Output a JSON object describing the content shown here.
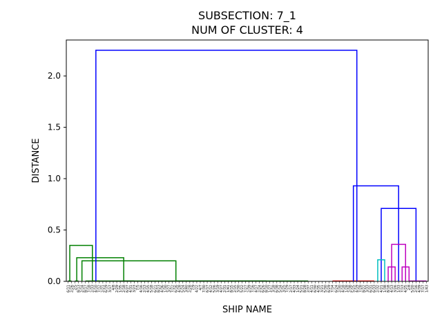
{
  "chart_data": {
    "type": "dendrogram",
    "title": "SUBSECTION: 7_1",
    "subtitle": "NUM OF CLUSTER: 4",
    "xlabel": "SHIP NAME",
    "ylabel": "DISTANCE",
    "ylim": [
      0,
      2.35
    ],
    "yticks": [
      0.0,
      0.5,
      1.0,
      1.5,
      2.0
    ],
    "ytick_labels": [
      "0.0",
      "0.5",
      "1.0",
      "1.5",
      "2.0"
    ],
    "leaf_count": 104,
    "leaf_labels": [
      "6/11",
      "2/26",
      "2/5",
      "8/13",
      "2/14",
      "8/17",
      "7/18",
      "2/33",
      "4/10",
      "7/12",
      "2/21",
      "6/19",
      "3/17",
      "4/8",
      "2/29",
      "1/35",
      "2/18",
      "6/27",
      "4/31",
      "3/23",
      "7/5",
      "4/16",
      "2/13",
      "4/15",
      "5/18",
      "6/21",
      "8/23",
      "4/36",
      "1/30",
      "3/27",
      "7/22",
      "6/16",
      "4/28",
      "5/24",
      "3/40",
      "2/28",
      "7/9",
      "4/22",
      "4/7",
      "7/30",
      "6/17",
      "4/12",
      "5/26",
      "3/19",
      "4/27",
      "2/31",
      "1/41",
      "8/15",
      "2/15",
      "3/30",
      "5/22",
      "7/27",
      "2/39",
      "7/16",
      "4/17",
      "2/24",
      "6/26",
      "8/10",
      "1/27",
      "3/18",
      "6/38",
      "5/14",
      "3/25",
      "7/29",
      "2/17",
      "4/33",
      "1/24",
      "5/21",
      "8/28",
      "2/37",
      "4/11",
      "6/30",
      "4/35",
      "3/21",
      "5/30",
      "6/29",
      "7/14",
      "6/24",
      "2/30",
      "4/18",
      "1/28",
      "2/38",
      "5/25",
      "4/19",
      "7/28",
      "8/22",
      "3/33",
      "6/31",
      "6/33",
      "2/32",
      "4/21",
      "1/38",
      "8/18",
      "4/13",
      "3/26",
      "1/33",
      "7/13",
      "4/25",
      "2/8",
      "5/20",
      "2/16",
      "4/39",
      "7/17",
      "1/43"
    ],
    "colors": {
      "above_threshold": "#0000ff",
      "cluster_1": "#008000",
      "cluster_2": "#ff0000",
      "cluster_3": "#00bfbf",
      "cluster_4": "#bf00bf"
    },
    "links": [
      {
        "x1": 1,
        "x2": 2,
        "height": 0.0,
        "color": "cluster_1"
      },
      {
        "x1": 1.5,
        "x2": 8,
        "height": 0.35,
        "color": "cluster_1"
      },
      {
        "x1": 3,
        "x2": 4,
        "height": 0.0,
        "color": "cluster_1"
      },
      {
        "x1": 3.5,
        "x2": 17,
        "height": 0.23,
        "color": "cluster_1"
      },
      {
        "x1": 5,
        "x2": 32,
        "height": 0.2,
        "color": "cluster_1"
      },
      {
        "x1": 6,
        "x2": 58,
        "height": 0.0,
        "color": "cluster_1"
      },
      {
        "x1": 32,
        "x2": 70,
        "height": 0.0,
        "color": "cluster_1"
      },
      {
        "x1": 8,
        "x2": 10,
        "height": 0.0,
        "color": "cluster_1"
      },
      {
        "x1": 17,
        "x2": 20,
        "height": 0.0,
        "color": "cluster_1"
      },
      {
        "x1": 77,
        "x2": 89,
        "height": 0.0,
        "color": "cluster_2"
      },
      {
        "x1": 83,
        "x2": 96,
        "height": 0.93,
        "color": "above_threshold"
      },
      {
        "x1": 91,
        "x2": 101,
        "height": 0.71,
        "color": "above_threshold"
      },
      {
        "x1": 90,
        "x2": 92,
        "height": 0.21,
        "color": "cluster_3"
      },
      {
        "x1": 94,
        "x2": 98,
        "height": 0.36,
        "color": "cluster_4"
      },
      {
        "x1": 93,
        "x2": 95,
        "height": 0.14,
        "color": "cluster_4"
      },
      {
        "x1": 97,
        "x2": 99,
        "height": 0.14,
        "color": "cluster_4"
      },
      {
        "x1": 99,
        "x2": 104,
        "height": 0.0,
        "color": "cluster_4"
      },
      {
        "x1": 9,
        "x2": 84,
        "height": 2.25,
        "color": "above_threshold"
      }
    ]
  }
}
